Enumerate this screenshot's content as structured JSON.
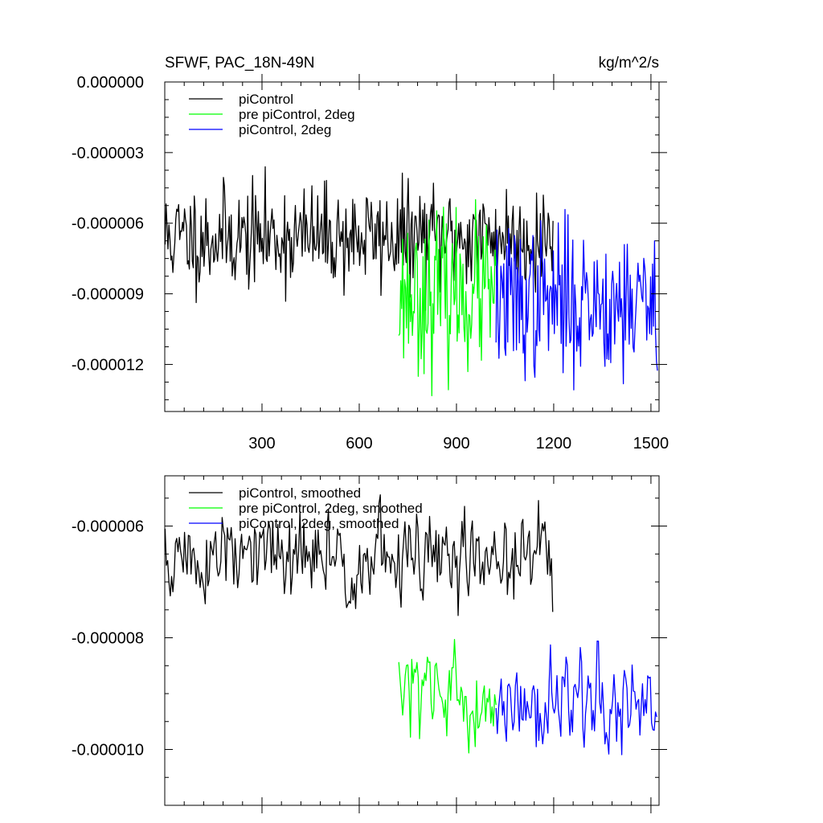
{
  "colors": {
    "black": "#000000",
    "green": "#00ff00",
    "blue": "#0000ff"
  },
  "chart_data": [
    {
      "type": "line",
      "title": "SFWF, PAC_18N-49N",
      "units": "kg/m^2/s",
      "xlim": [
        0,
        1525
      ],
      "ylim": [
        -1.4e-05,
        0.0
      ],
      "xticks": [
        300,
        600,
        900,
        1200,
        1500
      ],
      "xtick_labels": [
        "300",
        "600",
        "900",
        "1200",
        "1500"
      ],
      "xticks_labeled": true,
      "yticks": [
        0.0,
        -3e-06,
        -6e-06,
        -9e-06,
        -1.2e-05
      ],
      "ytick_labels": [
        "0.000000",
        "-0.000003",
        "-0.000006",
        "-0.000009",
        "-0.000012"
      ],
      "legend_position": "top-left",
      "series": [
        {
          "name": "piControl",
          "color": "#000000",
          "x_range": [
            1,
            1200
          ],
          "mean": -6.6e-06,
          "spread": 1.1e-06,
          "seed": 11,
          "step": 3
        },
        {
          "name": "pre piControl, 2deg",
          "color": "#00ff00",
          "x_range": [
            722,
            1022
          ],
          "mean": -9e-06,
          "spread": 1.6e-06,
          "seed": 23,
          "step": 3
        },
        {
          "name": "piControl, 2deg",
          "color": "#0000ff",
          "x_range": [
            1022,
            1520
          ],
          "mean": -9.3e-06,
          "spread": 1.6e-06,
          "seed": 37,
          "step": 3
        }
      ]
    },
    {
      "type": "line",
      "title": "",
      "units": "",
      "xlim": [
        0,
        1525
      ],
      "ylim": [
        -1.1e-05,
        -5.1e-06
      ],
      "xticks": [
        300,
        600,
        900,
        1200,
        1500
      ],
      "xtick_labels": [
        "300",
        "600",
        "900",
        "1200",
        "1500"
      ],
      "xticks_labeled": false,
      "yticks": [
        -6e-06,
        -8e-06,
        -1e-05
      ],
      "ytick_labels": [
        "-0.000006",
        "-0.000008",
        "-0.000010"
      ],
      "legend_position": "top-left",
      "series": [
        {
          "name": "piControl, smoothed",
          "color": "#000000",
          "x_range": [
            1,
            1200
          ],
          "mean": -6.6e-06,
          "spread": 4.5e-07,
          "seed": 51,
          "step": 4
        },
        {
          "name": "pre piControl, 2deg, smoothed",
          "color": "#00ff00",
          "x_range": [
            722,
            1022
          ],
          "mean": -9.1e-06,
          "spread": 4.5e-07,
          "seed": 63,
          "step": 4
        },
        {
          "name": "piControl, 2deg, smoothed",
          "color": "#0000ff",
          "x_range": [
            1022,
            1520
          ],
          "mean": -9.2e-06,
          "spread": 5e-07,
          "seed": 77,
          "step": 4
        }
      ]
    }
  ]
}
